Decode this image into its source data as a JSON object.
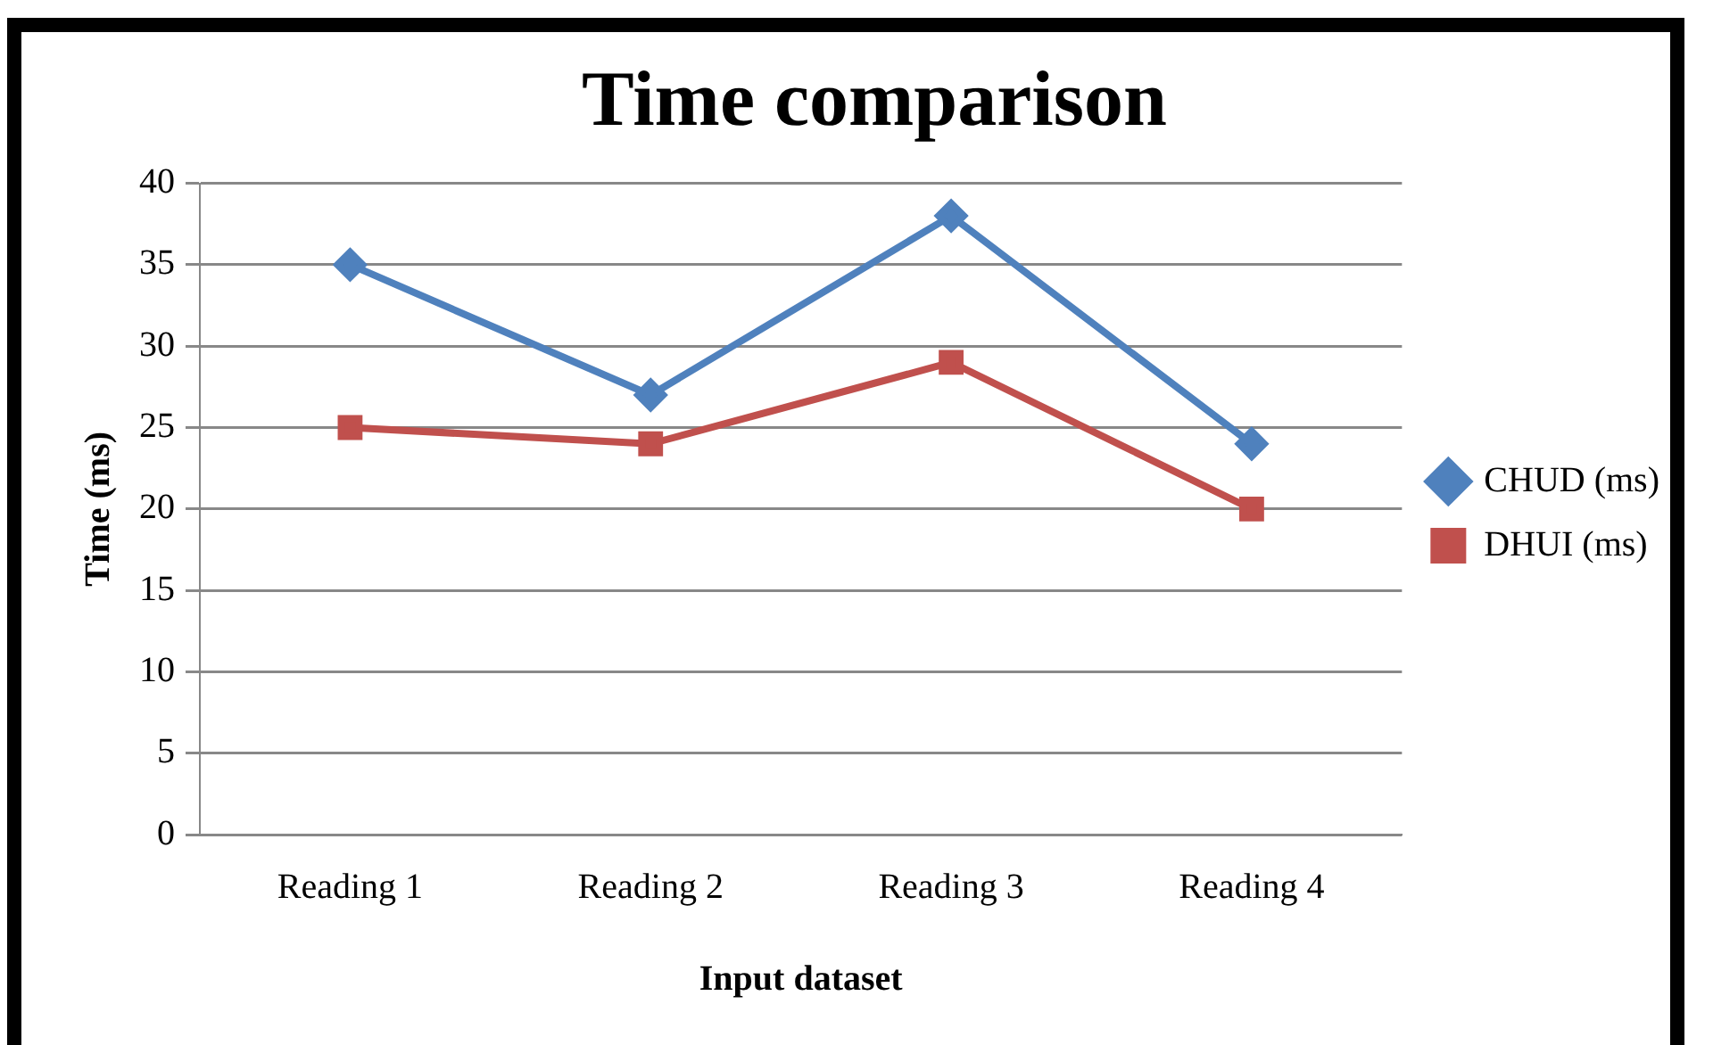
{
  "chart_data": {
    "type": "line",
    "title": "Time comparison",
    "xlabel": "Input dataset",
    "ylabel": "Time (ms)",
    "categories": [
      "Reading 1",
      "Reading 2",
      "Reading 3",
      "Reading 4"
    ],
    "series": [
      {
        "name": "CHUD (ms)",
        "color": "#4f81bd",
        "marker": "diamond",
        "values": [
          35,
          27,
          38,
          24
        ]
      },
      {
        "name": "DHUI (ms)",
        "color": "#c0504d",
        "marker": "square",
        "values": [
          25,
          24,
          29,
          20
        ]
      }
    ],
    "ylim": [
      0,
      40
    ],
    "yticks": [
      0,
      5,
      10,
      15,
      20,
      25,
      30,
      35,
      40
    ],
    "grid": "y",
    "legend": "right",
    "line_style": "solid"
  }
}
